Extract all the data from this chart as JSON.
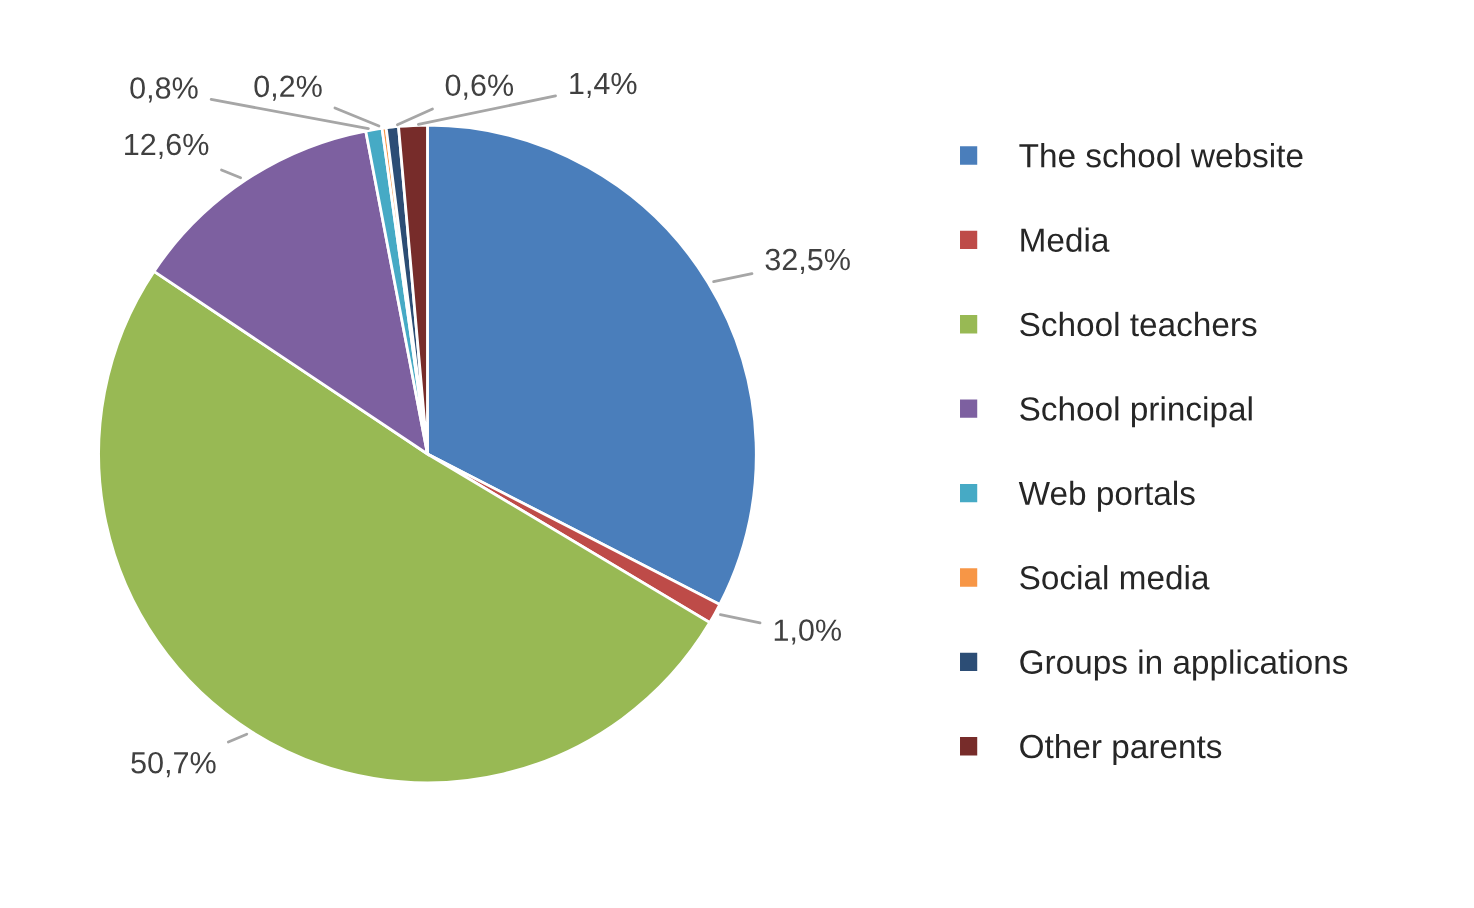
{
  "chart_data": {
    "type": "pie",
    "categories": [
      "The school website",
      "Media",
      "School teachers",
      "School principal",
      "Web portals",
      "Social media",
      "Groups in applications",
      "Other parents"
    ],
    "values": [
      32.5,
      1.0,
      50.7,
      12.6,
      0.8,
      0.2,
      0.6,
      1.4
    ],
    "value_labels": [
      "32,5%",
      "1,0%",
      "50,7%",
      "12,6%",
      "0,8%",
      "0,2%",
      "0,6%",
      "1,4%"
    ],
    "colors": [
      "#4a7ebb",
      "#be4b48",
      "#98b954",
      "#7d60a0",
      "#46aac5",
      "#f79646",
      "#2c4d75",
      "#772c2a"
    ],
    "legend": "right"
  }
}
